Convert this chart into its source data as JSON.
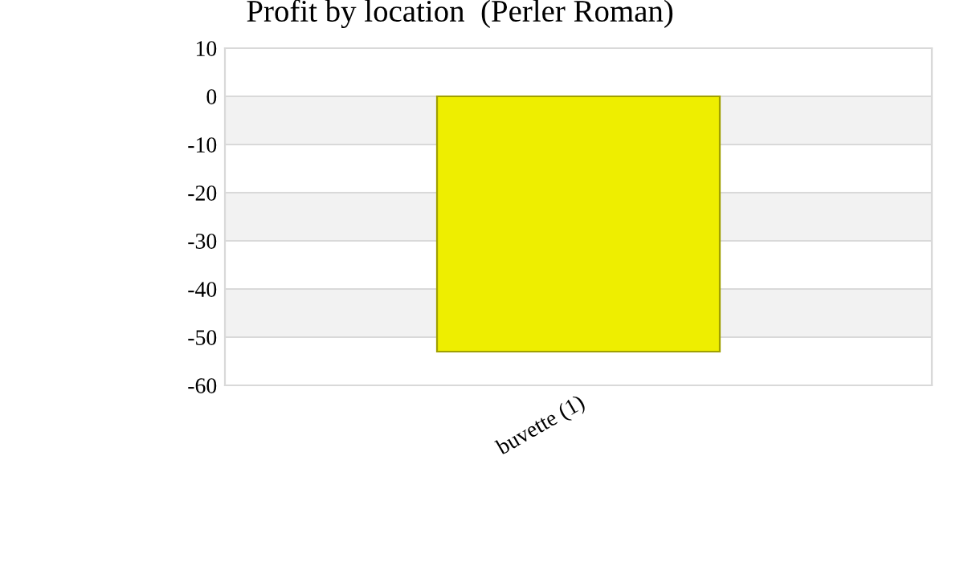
{
  "chart_data": {
    "type": "bar",
    "title": "Profit by location  (Perler Roman)",
    "categories": [
      "buvette (1)"
    ],
    "values": [
      -53
    ],
    "color": "#eeee00",
    "ylim": [
      -60,
      10
    ],
    "yticks": [
      -60,
      -50,
      -40,
      -30,
      -20,
      -10,
      0,
      10
    ],
    "grid": "y",
    "bands": [
      {
        "axis": "y",
        "from": -10,
        "to": 0,
        "label": null,
        "color": "#f2f2f2"
      },
      {
        "axis": "y",
        "from": -30,
        "to": -20,
        "label": null,
        "color": "#f2f2f2"
      },
      {
        "axis": "y",
        "from": -50,
        "to": -40,
        "label": null,
        "color": "#f2f2f2"
      }
    ]
  }
}
